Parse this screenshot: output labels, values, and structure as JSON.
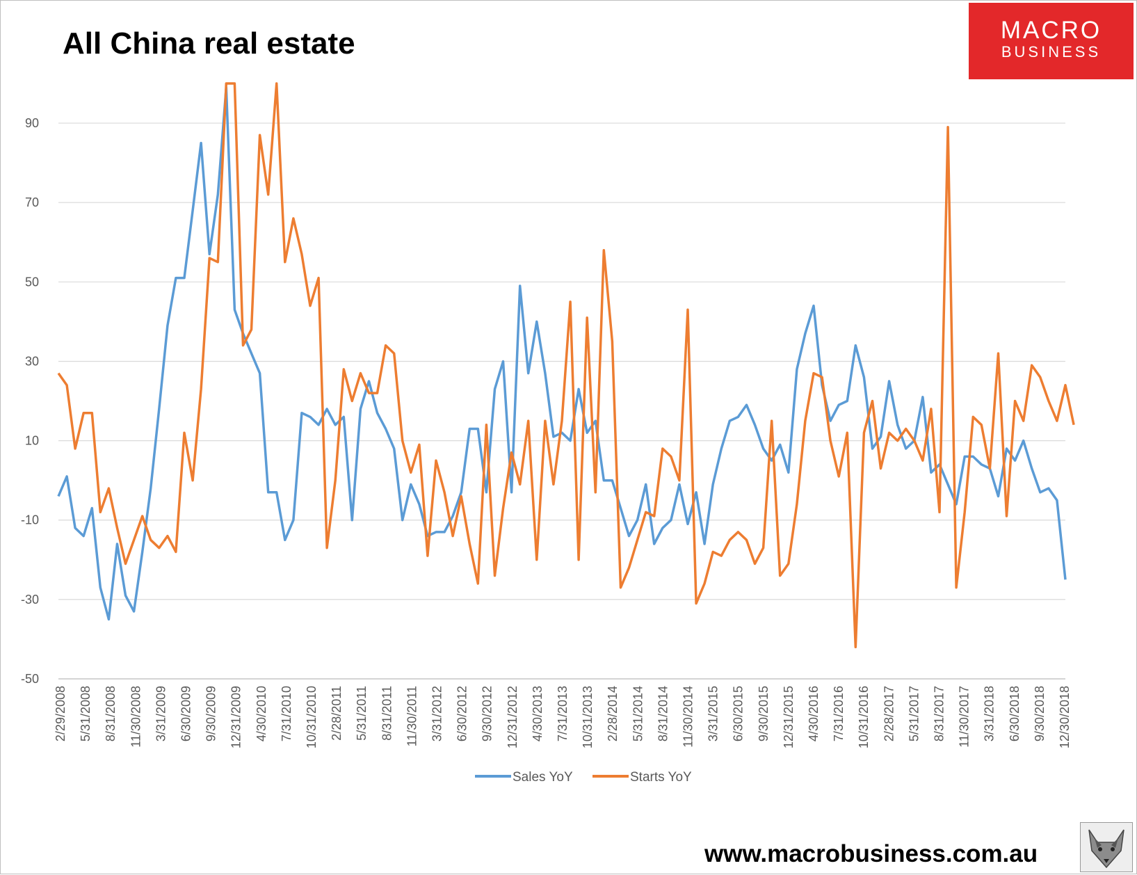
{
  "header": {
    "title": "All China real estate"
  },
  "logo": {
    "line1": "MACRO",
    "line2": "BUSINESS",
    "color": "#e3282a"
  },
  "footer": {
    "website": "www.macrobusiness.com.au",
    "icon": "wolf-icon"
  },
  "chart_data": {
    "type": "line",
    "title": "All China real estate",
    "xlabel": "",
    "ylabel": "",
    "ylim": [
      -50,
      100
    ],
    "yticks": [
      90,
      70,
      50,
      30,
      10,
      -10,
      -30,
      -50
    ],
    "grid": true,
    "legend": "bottom-center",
    "x_tick_labels": [
      "2/29/2008",
      "5/31/2008",
      "8/31/2008",
      "11/30/2008",
      "3/31/2009",
      "6/30/2009",
      "9/30/2009",
      "12/31/2009",
      "4/30/2010",
      "7/31/2010",
      "10/31/2010",
      "2/28/2011",
      "5/31/2011",
      "8/31/2011",
      "11/30/2011",
      "3/31/2012",
      "6/30/2012",
      "9/30/2012",
      "12/31/2012",
      "4/30/2013",
      "7/31/2013",
      "10/31/2013",
      "2/28/2014",
      "5/31/2014",
      "8/31/2014",
      "11/30/2014",
      "3/31/2015",
      "6/30/2015",
      "9/30/2015",
      "12/31/2015",
      "4/30/2016",
      "7/31/2016",
      "10/31/2016",
      "2/28/2017",
      "5/31/2017",
      "8/31/2017",
      "11/30/2017",
      "3/31/2018",
      "6/30/2018",
      "9/30/2018",
      "12/30/2018"
    ],
    "series": [
      {
        "name": "Sales YoY",
        "color": "#5b9bd5",
        "values": [
          -4,
          1,
          -12,
          -14,
          -7,
          -27,
          -35,
          -16,
          -29,
          -33,
          -18,
          -2,
          18,
          39,
          51,
          51,
          68,
          85,
          57,
          72,
          99,
          43,
          37,
          32,
          27,
          -3,
          -3,
          -15,
          -10,
          17,
          16,
          14,
          18,
          14,
          16,
          -10,
          18,
          25,
          17,
          13,
          8,
          -10,
          -1,
          -6,
          -14,
          -13,
          -13,
          -9,
          -3,
          13,
          13,
          -3,
          23,
          30,
          -3,
          49,
          27,
          40,
          27,
          11,
          12,
          10,
          23,
          12,
          15,
          0,
          0,
          -7,
          -14,
          -10,
          -1,
          -16,
          -12,
          -10,
          -1,
          -11,
          -3,
          -16,
          -1,
          8,
          15,
          16,
          19,
          14,
          8,
          5,
          9,
          2,
          28,
          37,
          44,
          24,
          15,
          19,
          20,
          34,
          26,
          8,
          11,
          25,
          14,
          8,
          10,
          21,
          2,
          4,
          -1,
          -6,
          6,
          6,
          4,
          3,
          -4,
          8,
          5,
          10,
          3,
          -3,
          -2,
          -5,
          -25
        ]
      },
      {
        "name": "Starts YoY",
        "color": "#ed7d31",
        "values": [
          27,
          24,
          8,
          17,
          17,
          -8,
          -2,
          -12,
          -21,
          -15,
          -9,
          -15,
          -17,
          -14,
          -18,
          12,
          0,
          23,
          56,
          55,
          100,
          100,
          34,
          38,
          87,
          72,
          100,
          55,
          66,
          57,
          44,
          51,
          -17,
          0,
          28,
          20,
          27,
          22,
          22,
          34,
          32,
          10,
          2,
          9,
          -19,
          5,
          -3,
          -14,
          -4,
          -16,
          -26,
          14,
          -24,
          -7,
          7,
          -1,
          15,
          -20,
          15,
          -1,
          15,
          45,
          -20,
          41,
          -3,
          58,
          35,
          -27,
          -22,
          -15,
          -8,
          -9,
          8,
          6,
          0,
          43,
          -31,
          -26,
          -18,
          -19,
          -15,
          -13,
          -15,
          -21,
          -17,
          15,
          -24,
          -21,
          -6,
          15,
          27,
          26,
          10,
          1,
          12,
          -42,
          12,
          20,
          3,
          12,
          10,
          13,
          10,
          5,
          18,
          -8,
          89,
          -27,
          -8,
          16,
          14,
          3,
          32,
          -9,
          20,
          15,
          29,
          26,
          20,
          15,
          24,
          14
        ]
      }
    ]
  }
}
